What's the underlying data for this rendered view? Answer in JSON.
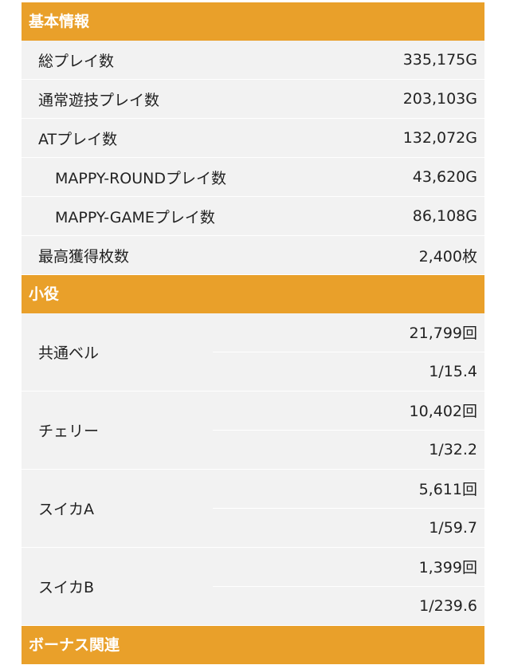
{
  "sections": {
    "basic": {
      "title": "基本情報",
      "rows": [
        {
          "label": "総プレイ数",
          "value": "335,175G"
        },
        {
          "label": "通常遊技プレイ数",
          "value": "203,103G"
        },
        {
          "label": "ATプレイ数",
          "value": "132,072G"
        },
        {
          "label": "MAPPY-ROUNDプレイ数",
          "value": "43,620G"
        },
        {
          "label": "MAPPY-GAMEプレイ数",
          "value": "86,108G"
        },
        {
          "label": "最高獲得枚数",
          "value": "2,400枚"
        }
      ]
    },
    "koyaku": {
      "title": "小役",
      "rows": [
        {
          "label": "共通ベル",
          "count": "21,799回",
          "prob": "1/15.4"
        },
        {
          "label": "チェリー",
          "count": "10,402回",
          "prob": "1/32.2"
        },
        {
          "label": "スイカA",
          "count": "5,611回",
          "prob": "1/59.7"
        },
        {
          "label": "スイカB",
          "count": "1,399回",
          "prob": "1/239.6"
        }
      ]
    },
    "bonus": {
      "title": "ボーナス関連"
    }
  }
}
